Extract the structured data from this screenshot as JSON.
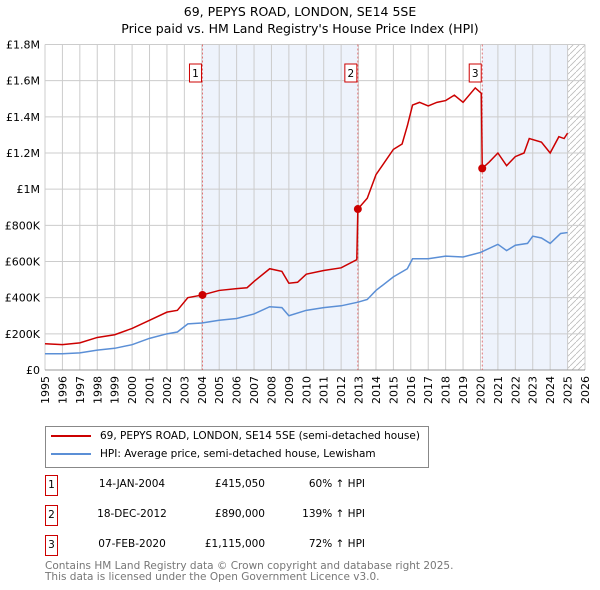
{
  "chart_data": {
    "type": "line",
    "title": "69, PEPYS ROAD, LONDON, SE14 5SE",
    "subtitle": "Price paid vs. HM Land Registry's House Price Index (HPI)",
    "xlim": [
      1995,
      2026
    ],
    "ylim": [
      0,
      1800000
    ],
    "x_ticks": [
      "1995",
      "1996",
      "1997",
      "1998",
      "1999",
      "2000",
      "2001",
      "2002",
      "2003",
      "2004",
      "2005",
      "2006",
      "2007",
      "2008",
      "2009",
      "2010",
      "2011",
      "2012",
      "2013",
      "2014",
      "2015",
      "2016",
      "2017",
      "2018",
      "2019",
      "2020",
      "2021",
      "2022",
      "2023",
      "2024",
      "2025",
      "2026"
    ],
    "y_ticks": [
      {
        "v": 0,
        "label": "£0"
      },
      {
        "v": 200000,
        "label": "£200K"
      },
      {
        "v": 400000,
        "label": "£400K"
      },
      {
        "v": 600000,
        "label": "£600K"
      },
      {
        "v": 800000,
        "label": "£800K"
      },
      {
        "v": 1000000,
        "label": "£1M"
      },
      {
        "v": 1200000,
        "label": "£1.2M"
      },
      {
        "v": 1400000,
        "label": "£1.4M"
      },
      {
        "v": 1600000,
        "label": "£1.6M"
      },
      {
        "v": 1800000,
        "label": "£1.8M"
      }
    ],
    "grid": true,
    "shaded_ranges": [
      [
        2004.04,
        2012.96
      ],
      [
        2020.1,
        2025.0
      ]
    ],
    "hatch_from": 2025.0,
    "series": [
      {
        "name": "69, PEPYS ROAD, LONDON, SE14 5SE (semi-detached house)",
        "color": "#cc0000",
        "points": [
          [
            1995,
            145000
          ],
          [
            1996,
            140000
          ],
          [
            1997,
            150000
          ],
          [
            1998,
            180000
          ],
          [
            1999,
            195000
          ],
          [
            2000,
            230000
          ],
          [
            2001,
            275000
          ],
          [
            2002,
            320000
          ],
          [
            2002.6,
            330000
          ],
          [
            2003.2,
            400000
          ],
          [
            2004.04,
            415050
          ],
          [
            2005,
            440000
          ],
          [
            2006,
            450000
          ],
          [
            2006.6,
            455000
          ],
          [
            2007,
            490000
          ],
          [
            2007.9,
            560000
          ],
          [
            2008.6,
            545000
          ],
          [
            2009,
            480000
          ],
          [
            2009.5,
            485000
          ],
          [
            2010,
            530000
          ],
          [
            2011,
            550000
          ],
          [
            2012,
            565000
          ],
          [
            2012.9,
            610000
          ],
          [
            2012.96,
            890000
          ],
          [
            2013.5,
            950000
          ],
          [
            2014,
            1080000
          ],
          [
            2014.5,
            1150000
          ],
          [
            2015,
            1220000
          ],
          [
            2015.5,
            1250000
          ],
          [
            2015.8,
            1350000
          ],
          [
            2016.1,
            1465000
          ],
          [
            2016.5,
            1480000
          ],
          [
            2017,
            1460000
          ],
          [
            2017.5,
            1480000
          ],
          [
            2018,
            1490000
          ],
          [
            2018.5,
            1520000
          ],
          [
            2019,
            1480000
          ],
          [
            2019.7,
            1560000
          ],
          [
            2020.05,
            1530000
          ],
          [
            2020.1,
            1115000
          ],
          [
            2020.5,
            1150000
          ],
          [
            2021,
            1200000
          ],
          [
            2021.5,
            1130000
          ],
          [
            2022,
            1180000
          ],
          [
            2022.5,
            1200000
          ],
          [
            2022.8,
            1280000
          ],
          [
            2023.5,
            1260000
          ],
          [
            2024,
            1200000
          ],
          [
            2024.5,
            1290000
          ],
          [
            2024.8,
            1280000
          ],
          [
            2025,
            1310000
          ]
        ]
      },
      {
        "name": "HPI: Average price, semi-detached house, Lewisham",
        "color": "#5b8fd6",
        "points": [
          [
            1995,
            90000
          ],
          [
            1996,
            90000
          ],
          [
            1997,
            95000
          ],
          [
            1998,
            110000
          ],
          [
            1999,
            120000
          ],
          [
            2000,
            140000
          ],
          [
            2001,
            175000
          ],
          [
            2002,
            200000
          ],
          [
            2002.6,
            210000
          ],
          [
            2003.2,
            255000
          ],
          [
            2004,
            260000
          ],
          [
            2005,
            275000
          ],
          [
            2006,
            285000
          ],
          [
            2007,
            310000
          ],
          [
            2007.9,
            350000
          ],
          [
            2008.6,
            345000
          ],
          [
            2009,
            300000
          ],
          [
            2010,
            330000
          ],
          [
            2011,
            345000
          ],
          [
            2012,
            355000
          ],
          [
            2012.96,
            375000
          ],
          [
            2013.5,
            390000
          ],
          [
            2014,
            440000
          ],
          [
            2015,
            515000
          ],
          [
            2015.8,
            560000
          ],
          [
            2016.1,
            615000
          ],
          [
            2017,
            615000
          ],
          [
            2018,
            630000
          ],
          [
            2019,
            625000
          ],
          [
            2020,
            650000
          ],
          [
            2021,
            695000
          ],
          [
            2021.5,
            660000
          ],
          [
            2022,
            690000
          ],
          [
            2022.7,
            700000
          ],
          [
            2023,
            740000
          ],
          [
            2023.5,
            730000
          ],
          [
            2024,
            700000
          ],
          [
            2024.6,
            755000
          ],
          [
            2025,
            760000
          ]
        ]
      }
    ],
    "sales": [
      {
        "label": "1",
        "x": 2004.04,
        "value": 415050
      },
      {
        "label": "2",
        "x": 2012.96,
        "value": 890000
      },
      {
        "label": "3",
        "x": 2020.1,
        "value": 1115000
      }
    ]
  },
  "legend": [
    "69, PEPYS ROAD, LONDON, SE14 5SE (semi-detached house)",
    "HPI: Average price, semi-detached house, Lewisham"
  ],
  "table": [
    {
      "n": "1",
      "date": "14-JAN-2004",
      "price": "£415,050",
      "hpi": "60% ↑ HPI"
    },
    {
      "n": "2",
      "date": "18-DEC-2012",
      "price": "£890,000",
      "hpi": "139% ↑ HPI"
    },
    {
      "n": "3",
      "date": "07-FEB-2020",
      "price": "£1,115,000",
      "hpi": "72% ↑ HPI"
    }
  ],
  "footer": [
    "Contains HM Land Registry data © Crown copyright and database right 2025.",
    "This data is licensed under the Open Government Licence v3.0."
  ]
}
